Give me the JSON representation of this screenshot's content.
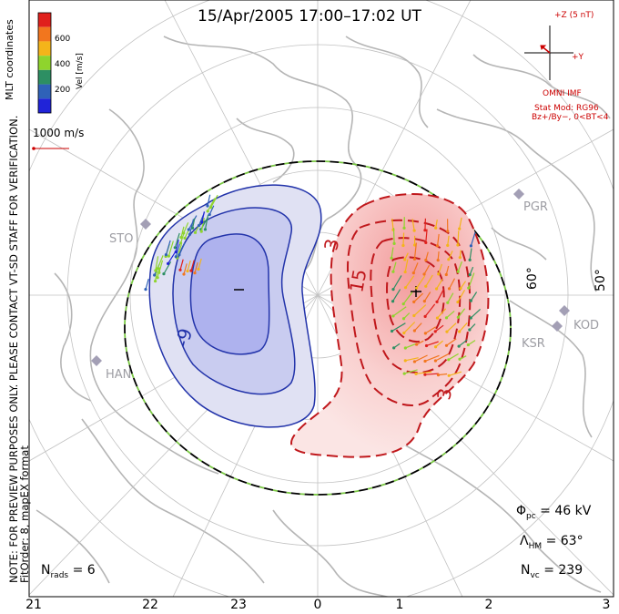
{
  "title": "15/Apr/2005 17:00–17:02 UT",
  "side_notes": {
    "left_note": "NOTE: FOR PREVIEW PURPOSES ONLY. PLEASE CONTACT VT-SD STAFF FOR VERIFICATION.",
    "fit_order": "FitOrder: 8, mapEX format",
    "coords": "MLT coordinates"
  },
  "colorbar": {
    "label": "Vel [m/s]",
    "ticks": [
      "600",
      "400",
      "200"
    ],
    "colors": [
      "#e0201c",
      "#f2761e",
      "#f4b41a",
      "#8fd42d",
      "#2d8f63",
      "#2f62b8",
      "#2023d8"
    ]
  },
  "scale_vector": "1000 m/s",
  "imf": {
    "axis_z": "+Z (5 nT)",
    "axis_y": "+Y",
    "source": "OMNI IMF",
    "model": "Stat Mod: RG96",
    "condition": "Bz+/By−, 0<BT<4"
  },
  "stats": {
    "phi_value": "= 46 kV",
    "lambda_value": "= 63°",
    "nvc_value": "= 239",
    "nrads_value": "= 6"
  },
  "mlt_labels": [
    "21",
    "22",
    "23",
    "0",
    "1",
    "2",
    "3"
  ],
  "lat_labels": [
    "60°",
    "50°"
  ],
  "stations": [
    "STO",
    "HAN",
    "PGR",
    "KOD",
    "KSR"
  ],
  "contour_labels": [
    "-9",
    "3",
    "15",
    "3"
  ],
  "colors": {
    "positive": "#c0181c",
    "negative": "#2233aa",
    "boundary_dash": "#7ac943",
    "continent": "#b8b8b8",
    "grid": "#bbbbbb"
  }
}
